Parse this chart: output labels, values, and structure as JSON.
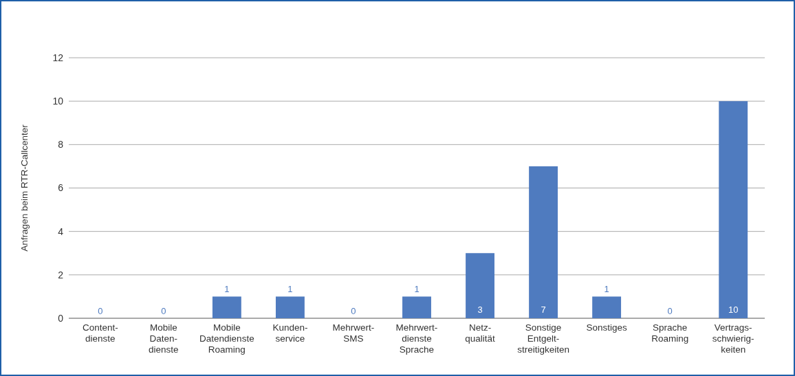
{
  "chart_data": {
    "type": "bar",
    "ylabel": "Anfragen beim RTR-Callcenter",
    "categories": [
      "Content-\ndienste",
      "Mobile\nDaten-\ndienste",
      "Mobile\nDatendienste\nRoaming",
      "Kunden-\nservice",
      "Mehrwert-\nSMS",
      "Mehrwert-\ndienste\nSprache",
      "Netz-\nqualität",
      "Sonstige\nEntgelt-\nstreitigkeiten",
      "Sonstiges",
      "Sprache\nRoaming",
      "Vertrags-\nschwierig-\nkeiten"
    ],
    "values": [
      0,
      0,
      1,
      1,
      0,
      1,
      3,
      7,
      1,
      0,
      10
    ],
    "color": "#4f7bbf",
    "ylim": [
      0,
      12
    ],
    "yticks": [
      0,
      2,
      4,
      6,
      8,
      10,
      12
    ],
    "grid": "y",
    "data_labels": true
  }
}
